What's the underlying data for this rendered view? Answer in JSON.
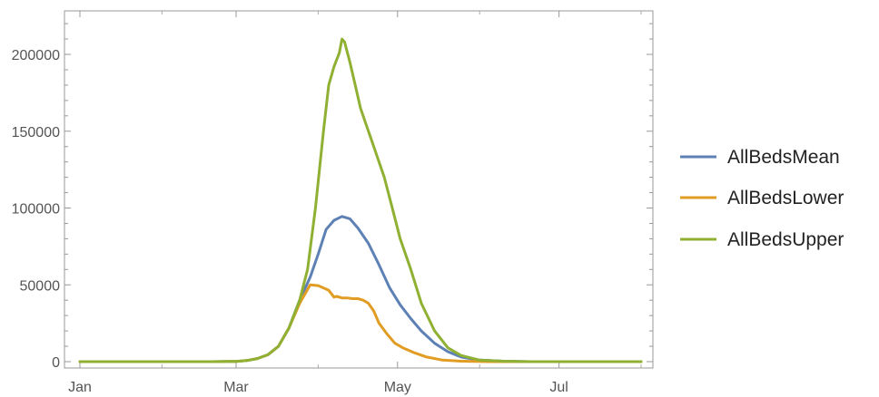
{
  "chart_data": {
    "type": "line",
    "title": "",
    "xlabel": "",
    "ylabel": "",
    "x_ticks": [
      "Jan",
      "Mar",
      "May",
      "Jul"
    ],
    "y_ticks": [
      "0",
      "50000",
      "100000",
      "150000",
      "200000"
    ],
    "y_tick_values": [
      0,
      50000,
      100000,
      150000,
      200000
    ],
    "ylim": [
      -5000,
      228000
    ],
    "legend_position": "right",
    "grid": false,
    "series": [
      {
        "name": "AllBedsMean",
        "color": "#5e81b5",
        "x": [
          "Jan 1",
          "Feb 1",
          "Feb 20",
          "Mar 1",
          "Mar 5",
          "Mar 9",
          "Mar 13",
          "Mar 17",
          "Mar 21",
          "Mar 25",
          "Mar 29",
          "Apr 1",
          "Apr 4",
          "Apr 7",
          "Apr 10",
          "Apr 13",
          "Apr 16",
          "Apr 20",
          "Apr 24",
          "Apr 28",
          "May 2",
          "May 6",
          "May 10",
          "May 15",
          "May 20",
          "May 25",
          "Jun 1",
          "Jun 10",
          "Jun 20",
          "Jul 1",
          "Jul 15",
          "Aug 1"
        ],
        "y": [
          0,
          0,
          0,
          200,
          700,
          2000,
          4500,
          10000,
          22000,
          40000,
          55000,
          70000,
          86000,
          92000,
          94500,
          93000,
          87000,
          77000,
          63000,
          48000,
          37000,
          28000,
          20000,
          12000,
          6500,
          3000,
          1000,
          300,
          0,
          0,
          0,
          0
        ]
      },
      {
        "name": "AllBedsLower",
        "color": "#e19c24",
        "x": [
          "Jan 1",
          "Feb 1",
          "Feb 20",
          "Mar 1",
          "Mar 5",
          "Mar 9",
          "Mar 13",
          "Mar 17",
          "Mar 21",
          "Mar 25",
          "Mar 29",
          "Apr 1",
          "Apr 3",
          "Apr 5",
          "Apr 7",
          "Apr 8",
          "Apr 10",
          "Apr 12",
          "Apr 14",
          "Apr 16",
          "Apr 18",
          "Apr 20",
          "Apr 22",
          "Apr 24",
          "Apr 27",
          "Apr 30",
          "May 3",
          "May 7",
          "May 12",
          "May 18",
          "May 25",
          "Jun 5",
          "Jun 20",
          "Jul 15",
          "Aug 1"
        ],
        "y": [
          0,
          0,
          0,
          200,
          700,
          2000,
          4500,
          10000,
          22000,
          38000,
          50000,
          49500,
          48000,
          46500,
          42000,
          42500,
          41500,
          41500,
          41000,
          41000,
          40000,
          38000,
          33000,
          25000,
          18000,
          12000,
          9000,
          6000,
          3000,
          1000,
          300,
          0,
          0,
          0,
          0
        ]
      },
      {
        "name": "AllBedsUpper",
        "color": "#8fb032",
        "x": [
          "Jan 1",
          "Feb 1",
          "Feb 20",
          "Mar 1",
          "Mar 5",
          "Mar 9",
          "Mar 13",
          "Mar 17",
          "Mar 21",
          "Mar 25",
          "Mar 28",
          "Mar 31",
          "Apr 3",
          "Apr 5",
          "Apr 7",
          "Apr 9",
          "Apr 10",
          "Apr 11",
          "Apr 13",
          "Apr 15",
          "Apr 17",
          "Apr 19",
          "Apr 21",
          "Apr 23",
          "Apr 26",
          "Apr 29",
          "May 2",
          "May 6",
          "May 10",
          "May 15",
          "May 20",
          "May 25",
          "Jun 1",
          "Jun 10",
          "Jun 20",
          "Jul 1",
          "Jul 15",
          "Aug 1"
        ],
        "y": [
          0,
          0,
          0,
          200,
          700,
          2000,
          4500,
          10000,
          22000,
          40000,
          60000,
          100000,
          150000,
          180000,
          192000,
          201000,
          210000,
          208000,
          195000,
          180000,
          165000,
          155000,
          145000,
          135000,
          120000,
          100000,
          80000,
          60000,
          38000,
          20000,
          9000,
          4000,
          1000,
          300,
          0,
          0,
          0,
          0
        ]
      }
    ]
  }
}
